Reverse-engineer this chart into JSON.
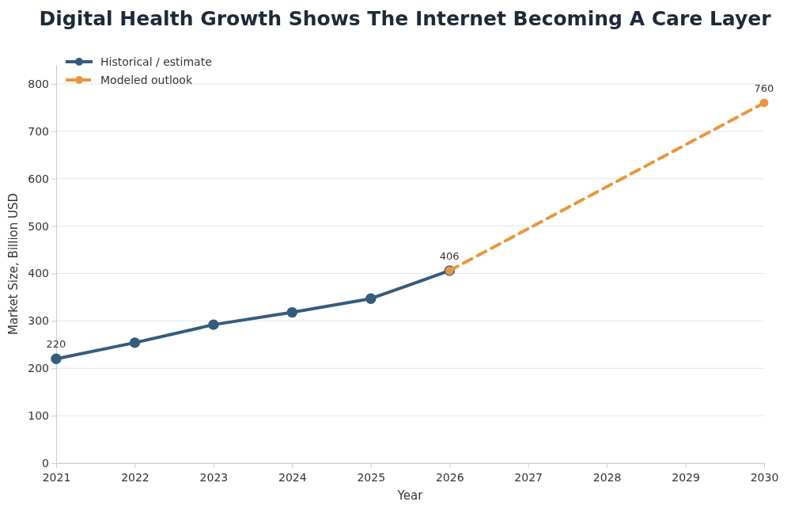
{
  "chart_data": {
    "type": "line",
    "title": "Digital Health Growth Shows The Internet Becoming A Care Layer",
    "xlabel": "Year",
    "ylabel": "Market Size, Billion USD",
    "xlim": [
      2021,
      2030
    ],
    "xticks": [
      2021,
      2022,
      2023,
      2024,
      2025,
      2026,
      2027,
      2028,
      2029,
      2030
    ],
    "ylim": [
      0,
      840
    ],
    "yticks": [
      0,
      100,
      200,
      300,
      400,
      500,
      600,
      700,
      800
    ],
    "grid": "y",
    "legend": "top left",
    "marker": "circle",
    "series": [
      {
        "name": "Historical / estimate",
        "color": "#355c7d",
        "line_style": "solid",
        "x": [
          2021,
          2022,
          2023,
          2024,
          2025,
          2026
        ],
        "values": [
          220,
          254,
          292,
          318,
          347,
          406
        ],
        "value_labels": [
          "220",
          null,
          null,
          null,
          null,
          null
        ]
      },
      {
        "name": "Modeled outlook",
        "color": "#ec953f",
        "line_style": "dashed",
        "x": [
          2026,
          2030
        ],
        "values": [
          406,
          760
        ],
        "value_labels": [
          "406",
          "760"
        ]
      }
    ]
  }
}
